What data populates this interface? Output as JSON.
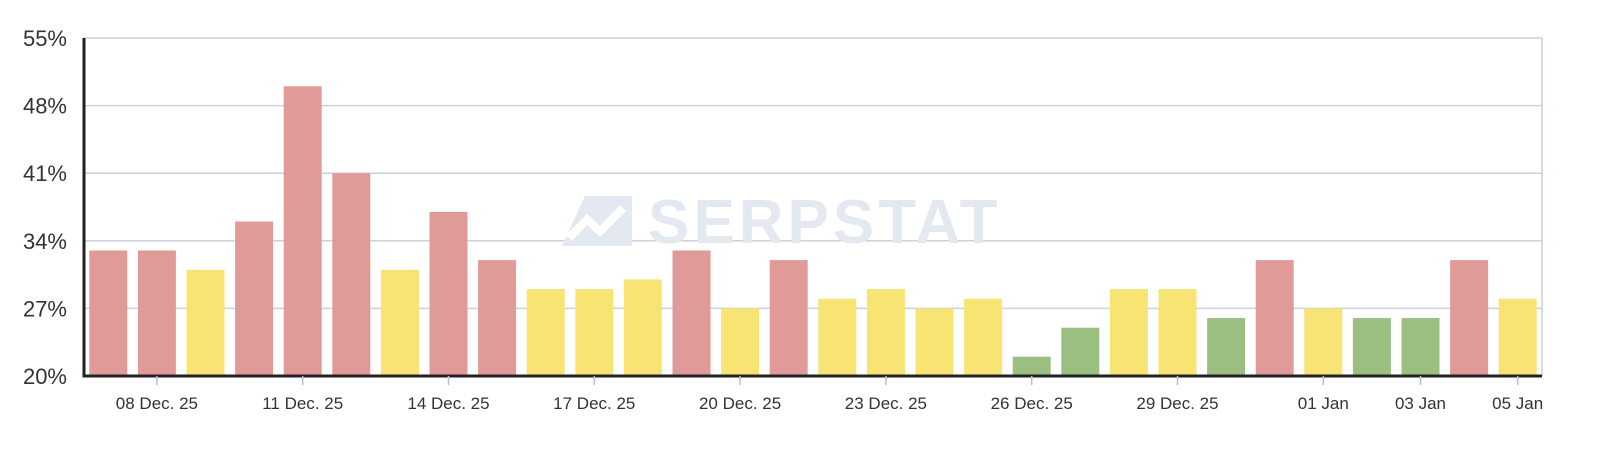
{
  "watermark": {
    "text": "SERPSTAT"
  },
  "chart_data": {
    "type": "bar",
    "title": "",
    "xlabel": "",
    "ylabel": "",
    "ylim": [
      20,
      55
    ],
    "y_ticks": [
      "20%",
      "27%",
      "34%",
      "41%",
      "48%",
      "55%"
    ],
    "y_tick_values": [
      20,
      27,
      34,
      41,
      48,
      55
    ],
    "grid": true,
    "legend": "none",
    "categories": [
      "07 Dec. 25",
      "08 Dec. 25",
      "09 Dec. 25",
      "10 Dec. 25",
      "11 Dec. 25",
      "12 Dec. 25",
      "13 Dec. 25",
      "14 Dec. 25",
      "15 Dec. 25",
      "16 Dec. 25",
      "17 Dec. 25",
      "18 Dec. 25",
      "19 Dec. 25",
      "20 Dec. 25",
      "21 Dec. 25",
      "22 Dec. 25",
      "23 Dec. 25",
      "24 Dec. 25",
      "25 Dec. 25",
      "26 Dec. 25",
      "27 Dec. 25",
      "28 Dec. 25",
      "29 Dec. 25",
      "30 Dec. 25",
      "31 Dec. 25",
      "01 Jan",
      "02 Jan",
      "03 Jan",
      "04 Jan",
      "05 Jan"
    ],
    "x_tick_labels": [
      {
        "index": 1,
        "label": "08 Dec. 25"
      },
      {
        "index": 4,
        "label": "11 Dec. 25"
      },
      {
        "index": 7,
        "label": "14 Dec. 25"
      },
      {
        "index": 10,
        "label": "17 Dec. 25"
      },
      {
        "index": 13,
        "label": "20 Dec. 25"
      },
      {
        "index": 16,
        "label": "23 Dec. 25"
      },
      {
        "index": 19,
        "label": "26 Dec. 25"
      },
      {
        "index": 22,
        "label": "29 Dec. 25"
      },
      {
        "index": 25,
        "label": "01 Jan"
      },
      {
        "index": 27,
        "label": "03 Jan"
      },
      {
        "index": 29,
        "label": "05 Jan"
      }
    ],
    "values": [
      33,
      33,
      31,
      36,
      50,
      41,
      31,
      37,
      32,
      29,
      29,
      30,
      33,
      27,
      32,
      28,
      29,
      27,
      28,
      22,
      25,
      29,
      29,
      26,
      32,
      27,
      26,
      26,
      32,
      28
    ],
    "bar_status": [
      "red",
      "red",
      "yellow",
      "red",
      "red",
      "red",
      "yellow",
      "red",
      "red",
      "yellow",
      "yellow",
      "yellow",
      "red",
      "yellow",
      "red",
      "yellow",
      "yellow",
      "yellow",
      "yellow",
      "green",
      "green",
      "yellow",
      "yellow",
      "green",
      "red",
      "yellow",
      "green",
      "green",
      "red",
      "yellow"
    ],
    "colors": {
      "red": "#e09b99",
      "yellow": "#f8e473",
      "green": "#9bbf81",
      "grid": "#c9d1dd",
      "axis": "#222222"
    }
  }
}
